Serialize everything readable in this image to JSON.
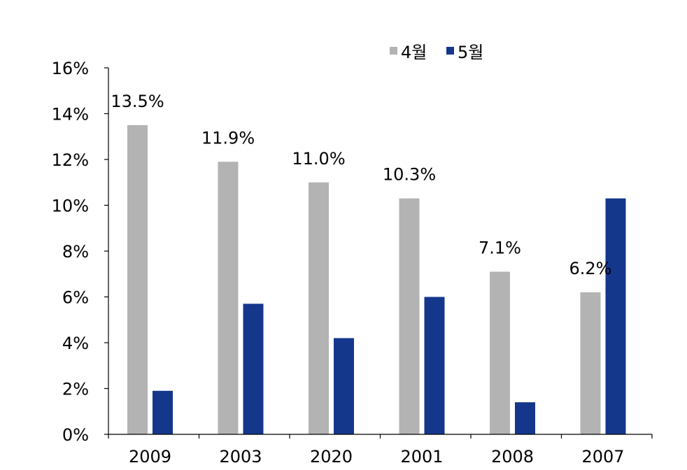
{
  "chart_data": {
    "type": "bar",
    "categories": [
      "2009",
      "2003",
      "2020",
      "2001",
      "2008",
      "2007"
    ],
    "series": [
      {
        "name": "4월",
        "values": [
          13.5,
          11.9,
          11.0,
          10.3,
          7.1,
          6.2
        ],
        "color": "#b3b3b3"
      },
      {
        "name": "5월",
        "values": [
          1.9,
          5.7,
          4.2,
          6.0,
          1.4,
          10.3
        ],
        "color": "#14378c"
      }
    ],
    "data_labels": [
      "13.5%",
      "11.9%",
      "11.0%",
      "10.3%",
      "7.1%",
      "6.2%"
    ],
    "ylim": [
      0,
      16
    ],
    "yticks": [
      "0%",
      "2%",
      "4%",
      "6%",
      "8%",
      "10%",
      "12%",
      "14%",
      "16%"
    ],
    "title": "",
    "xlabel": "",
    "ylabel": "",
    "grid": false,
    "legend_position": "top-right"
  }
}
